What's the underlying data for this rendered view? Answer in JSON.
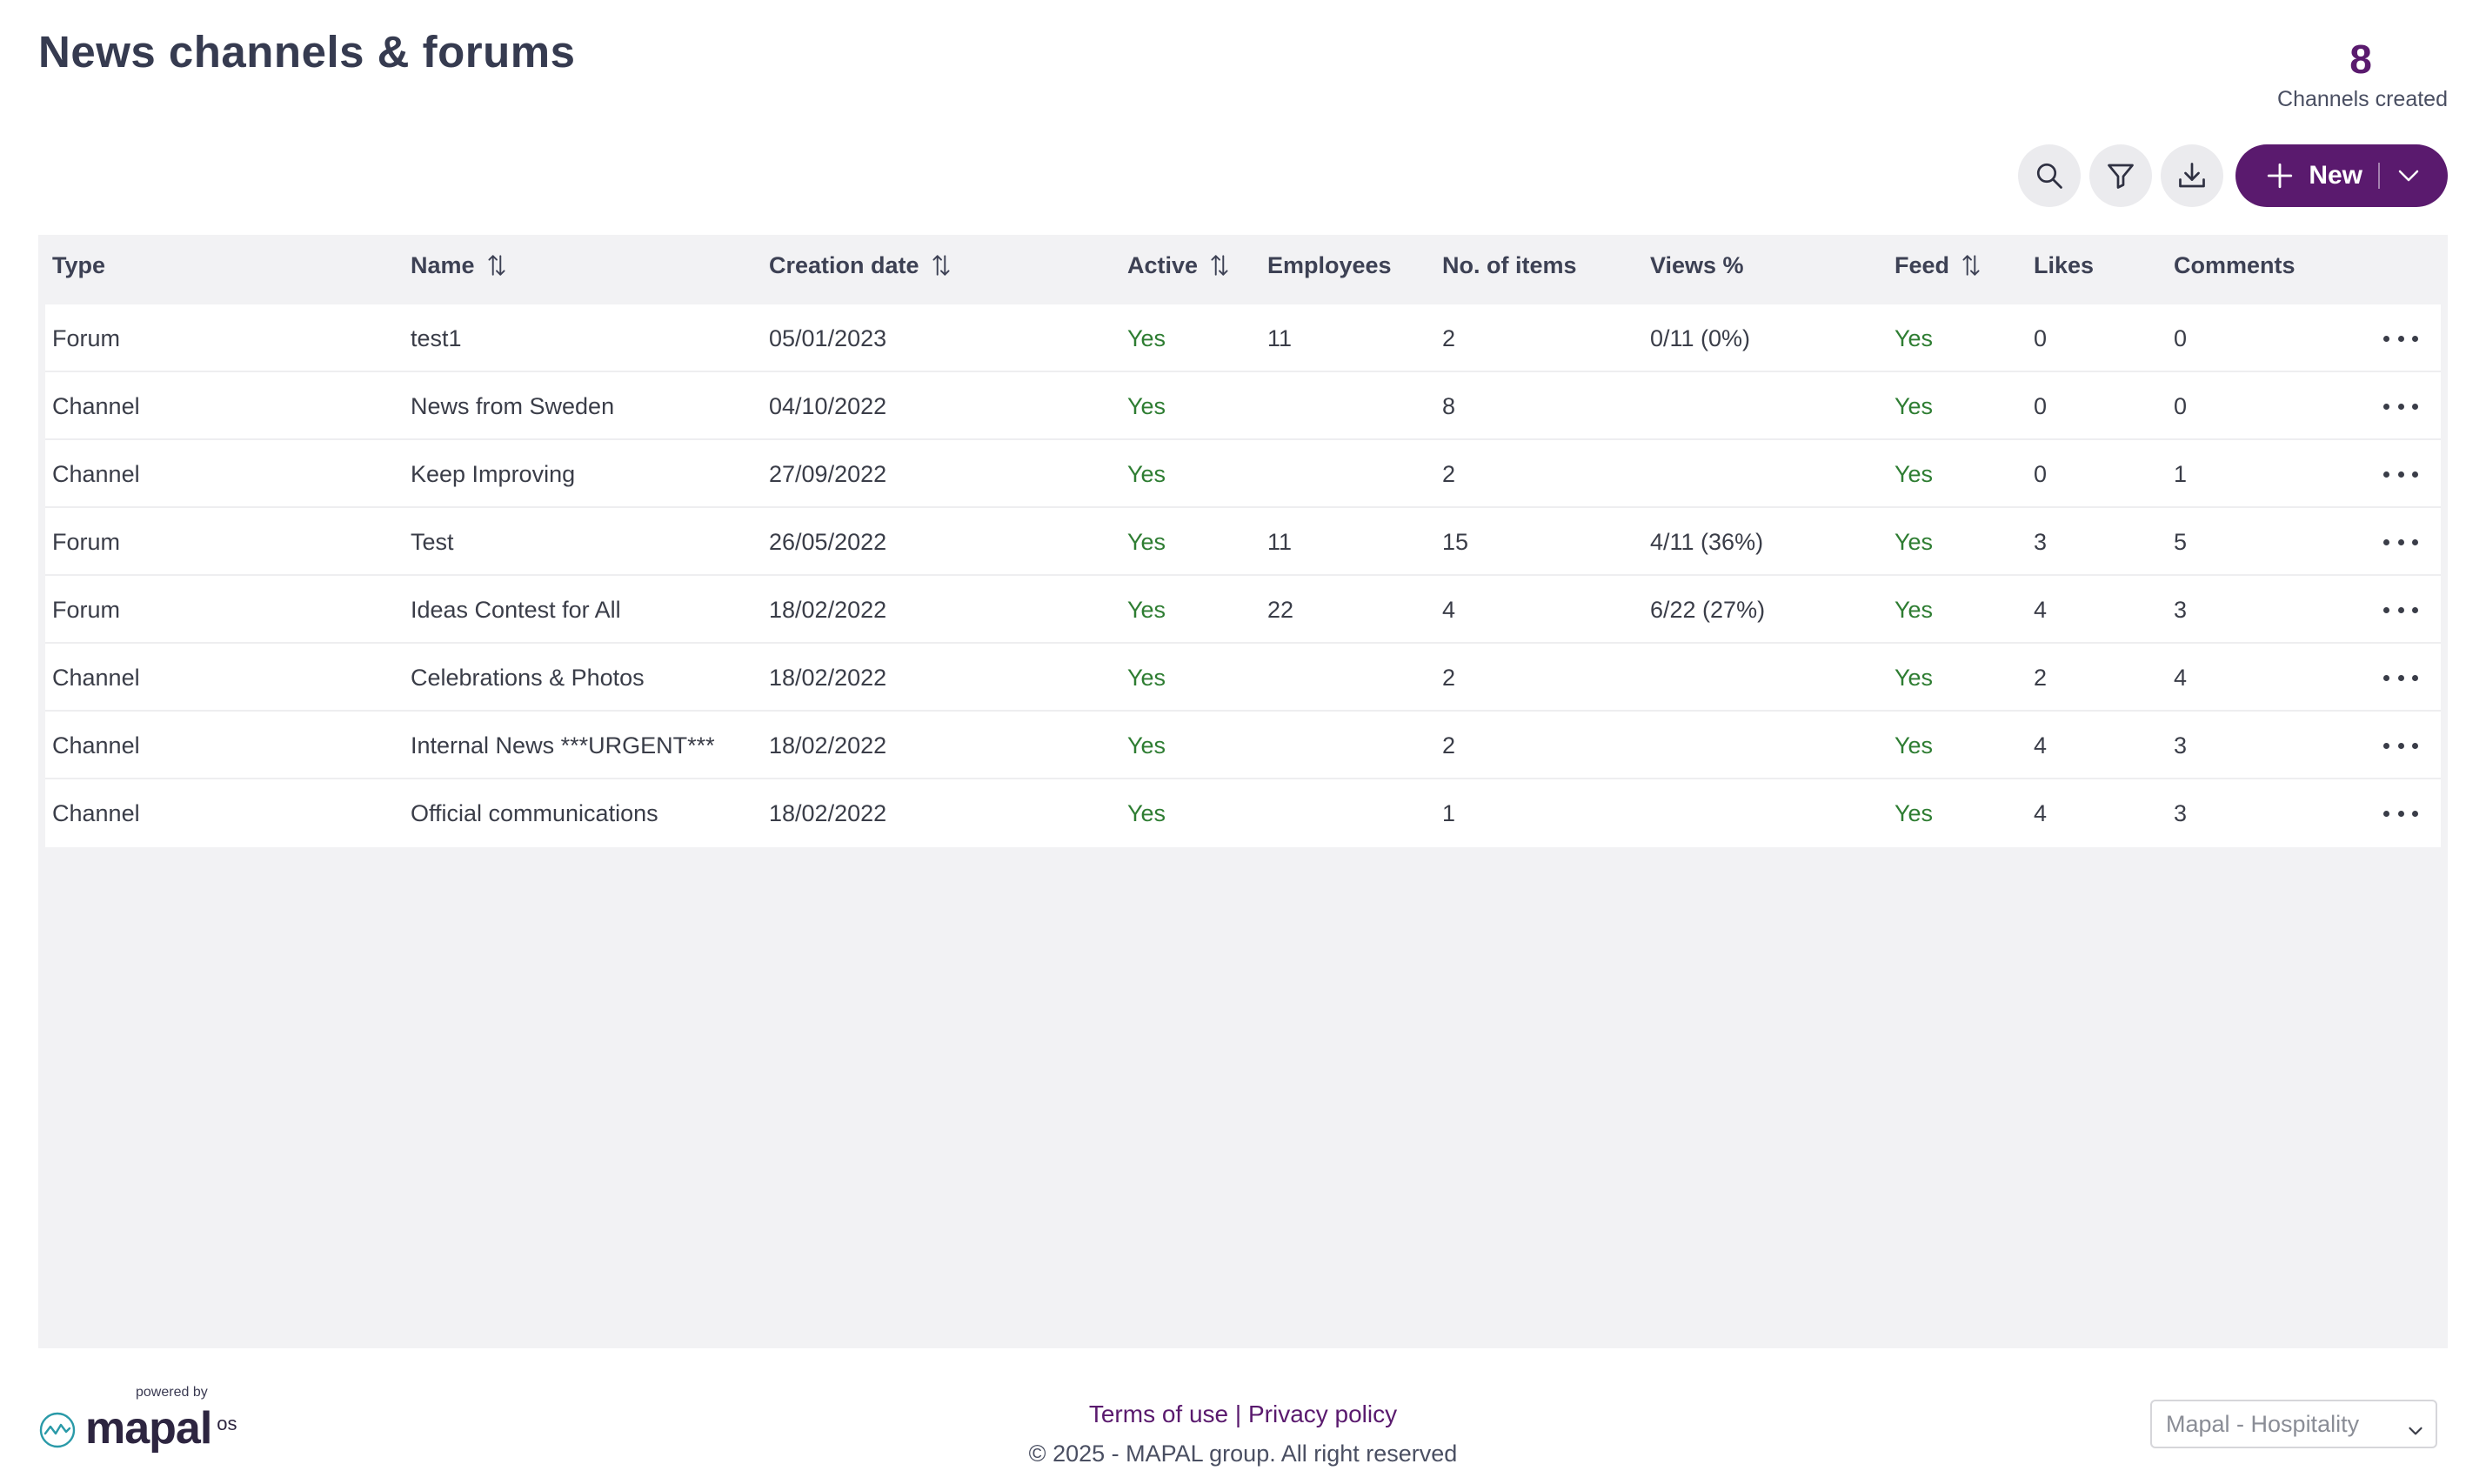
{
  "page": {
    "title": "News channels & forums"
  },
  "counter": {
    "value": "8",
    "label": "Channels created"
  },
  "toolbar": {
    "search_icon": "search-icon",
    "filter_icon": "filter-icon",
    "download_icon": "download-icon",
    "new_label": "New",
    "accent": "#5a1a6e"
  },
  "table": {
    "headers": {
      "type": "Type",
      "name": "Name",
      "creation_date": "Creation date",
      "active": "Active",
      "employees": "Employees",
      "items": "No. of items",
      "views": "Views %",
      "feed": "Feed",
      "likes": "Likes",
      "comments": "Comments"
    },
    "rows": [
      {
        "type": "Forum",
        "name": "test1",
        "date": "05/01/2023",
        "active": "Yes",
        "employees": "11",
        "items": "2",
        "views": "0/11 (0%)",
        "feed": "Yes",
        "likes": "0",
        "comments": "0"
      },
      {
        "type": "Channel",
        "name": "News from Sweden",
        "date": "04/10/2022",
        "active": "Yes",
        "employees": "",
        "items": "8",
        "views": "",
        "feed": "Yes",
        "likes": "0",
        "comments": "0"
      },
      {
        "type": "Channel",
        "name": "Keep Improving",
        "date": "27/09/2022",
        "active": "Yes",
        "employees": "",
        "items": "2",
        "views": "",
        "feed": "Yes",
        "likes": "0",
        "comments": "1"
      },
      {
        "type": "Forum",
        "name": "Test",
        "date": "26/05/2022",
        "active": "Yes",
        "employees": "11",
        "items": "15",
        "views": "4/11 (36%)",
        "feed": "Yes",
        "likes": "3",
        "comments": "5"
      },
      {
        "type": "Forum",
        "name": "Ideas Contest for All",
        "date": "18/02/2022",
        "active": "Yes",
        "employees": "22",
        "items": "4",
        "views": "6/22 (27%)",
        "feed": "Yes",
        "likes": "4",
        "comments": "3"
      },
      {
        "type": "Channel",
        "name": "Celebrations & Photos",
        "date": "18/02/2022",
        "active": "Yes",
        "employees": "",
        "items": "2",
        "views": "",
        "feed": "Yes",
        "likes": "2",
        "comments": "4"
      },
      {
        "type": "Channel",
        "name": "Internal News ***URGENT***",
        "date": "18/02/2022",
        "active": "Yes",
        "employees": "",
        "items": "2",
        "views": "",
        "feed": "Yes",
        "likes": "4",
        "comments": "3"
      },
      {
        "type": "Channel",
        "name": "Official communications",
        "date": "18/02/2022",
        "active": "Yes",
        "employees": "",
        "items": "1",
        "views": "",
        "feed": "Yes",
        "likes": "4",
        "comments": "3"
      }
    ]
  },
  "footer": {
    "powered_by": "powered by",
    "brand": "mapal",
    "brand_suffix": "os",
    "terms": "Terms of use",
    "separator": " | ",
    "privacy": "Privacy policy",
    "copyright": "© 2025 - MAPAL group. All right reserved",
    "org_selected": "Mapal - Hospitality"
  }
}
